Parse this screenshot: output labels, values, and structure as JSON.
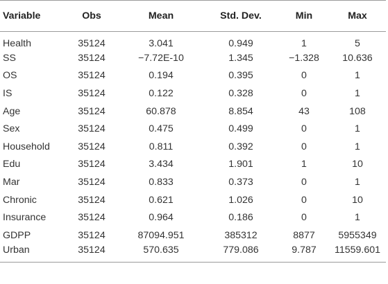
{
  "table": {
    "headers": [
      "Variable",
      "Obs",
      "Mean",
      "Std. Dev.",
      "Min",
      "Max"
    ],
    "rows": [
      [
        "Health",
        "35124",
        "3.041",
        "0.949",
        "1",
        "5"
      ],
      [
        "SS",
        "35124",
        "−7.72E-10",
        "1.345",
        "−1.328",
        "10.636"
      ],
      [
        "OS",
        "35124",
        "0.194",
        "0.395",
        "0",
        "1"
      ],
      [
        "IS",
        "35124",
        "0.122",
        "0.328",
        "0",
        "1"
      ],
      [
        "Age",
        "35124",
        "60.878",
        "8.854",
        "43",
        "108"
      ],
      [
        "Sex",
        "35124",
        "0.475",
        "0.499",
        "0",
        "1"
      ],
      [
        "Household",
        "35124",
        "0.811",
        "0.392",
        "0",
        "1"
      ],
      [
        "Edu",
        "35124",
        "3.434",
        "1.901",
        "1",
        "10"
      ],
      [
        "Mar",
        "35124",
        "0.833",
        "0.373",
        "0",
        "1"
      ],
      [
        "Chronic",
        "35124",
        "0.621",
        "1.026",
        "0",
        "10"
      ],
      [
        "Insurance",
        "35124",
        "0.964",
        "0.186",
        "0",
        "1"
      ],
      [
        "GDPP",
        "35124",
        "87094.951",
        "385312",
        "8877",
        "5955349"
      ],
      [
        "Urban",
        "35124",
        "570.635",
        "779.086",
        "9.787",
        "11559.601"
      ]
    ]
  }
}
